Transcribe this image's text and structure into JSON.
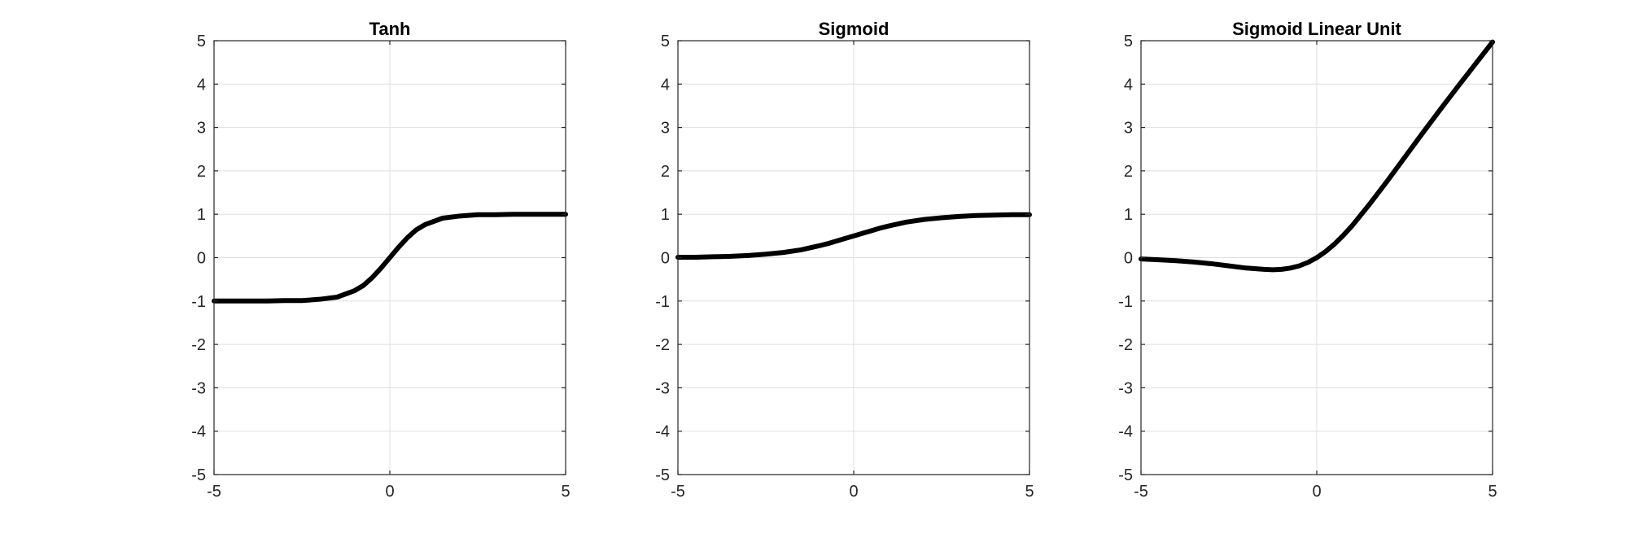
{
  "chart_data": [
    {
      "type": "line",
      "title": "Tanh",
      "xlabel": "",
      "ylabel": "",
      "xlim": [
        -5,
        5
      ],
      "ylim": [
        -5,
        5
      ],
      "xticks": [
        -5,
        0,
        5
      ],
      "yticks": [
        -5,
        -4,
        -3,
        -2,
        -1,
        0,
        1,
        2,
        3,
        4,
        5
      ],
      "xtick_labels": [
        "-5",
        "0",
        "5"
      ],
      "ytick_labels": [
        "-5",
        "-4",
        "-3",
        "-2",
        "-1",
        "0",
        "1",
        "2",
        "3",
        "4",
        "5"
      ],
      "grid": true,
      "line_color": "#000000",
      "x": [
        -5,
        -4.5,
        -4,
        -3.5,
        -3,
        -2.5,
        -2,
        -1.5,
        -1,
        -0.75,
        -0.5,
        -0.25,
        0,
        0.25,
        0.5,
        0.75,
        1,
        1.5,
        2,
        2.5,
        3,
        3.5,
        4,
        4.5,
        5
      ],
      "y": [
        -1.0,
        -1.0,
        -1.0,
        -1.0,
        -0.99,
        -0.99,
        -0.96,
        -0.91,
        -0.76,
        -0.64,
        -0.46,
        -0.24,
        0,
        0.24,
        0.46,
        0.64,
        0.76,
        0.91,
        0.96,
        0.99,
        0.99,
        1.0,
        1.0,
        1.0,
        1.0
      ]
    },
    {
      "type": "line",
      "title": "Sigmoid",
      "xlabel": "",
      "ylabel": "",
      "xlim": [
        -5,
        5
      ],
      "ylim": [
        -5,
        5
      ],
      "xticks": [
        -5,
        0,
        5
      ],
      "yticks": [
        -5,
        -4,
        -3,
        -2,
        -1,
        0,
        1,
        2,
        3,
        4,
        5
      ],
      "xtick_labels": [
        "-5",
        "0",
        "5"
      ],
      "ytick_labels": [
        "-5",
        "-4",
        "-3",
        "-2",
        "-1",
        "0",
        "1",
        "2",
        "3",
        "4",
        "5"
      ],
      "grid": true,
      "line_color": "#000000",
      "x": [
        -5,
        -4.5,
        -4,
        -3.5,
        -3,
        -2.5,
        -2,
        -1.5,
        -1,
        -0.75,
        -0.5,
        -0.25,
        0,
        0.25,
        0.5,
        0.75,
        1,
        1.5,
        2,
        2.5,
        3,
        3.5,
        4,
        4.5,
        5
      ],
      "y": [
        0.01,
        0.01,
        0.02,
        0.03,
        0.05,
        0.08,
        0.12,
        0.18,
        0.27,
        0.32,
        0.38,
        0.44,
        0.5,
        0.56,
        0.62,
        0.68,
        0.73,
        0.82,
        0.88,
        0.92,
        0.95,
        0.97,
        0.98,
        0.99,
        0.99
      ]
    },
    {
      "type": "line",
      "title": "Sigmoid Linear Unit",
      "xlabel": "",
      "ylabel": "",
      "xlim": [
        -5,
        5
      ],
      "ylim": [
        -5,
        5
      ],
      "xticks": [
        -5,
        0,
        5
      ],
      "yticks": [
        -5,
        -4,
        -3,
        -2,
        -1,
        0,
        1,
        2,
        3,
        4,
        5
      ],
      "xtick_labels": [
        "-5",
        "0",
        "5"
      ],
      "ytick_labels": [
        "-5",
        "-4",
        "-3",
        "-2",
        "-1",
        "0",
        "1",
        "2",
        "3",
        "4",
        "5"
      ],
      "grid": true,
      "line_color": "#000000",
      "x": [
        -5,
        -4.5,
        -4,
        -3.5,
        -3,
        -2.5,
        -2,
        -1.5,
        -1.25,
        -1,
        -0.75,
        -0.5,
        -0.25,
        0,
        0.25,
        0.5,
        0.75,
        1,
        1.5,
        2,
        2.5,
        3,
        3.5,
        4,
        4.5,
        5
      ],
      "y": [
        -0.03,
        -0.05,
        -0.07,
        -0.1,
        -0.14,
        -0.19,
        -0.24,
        -0.27,
        -0.28,
        -0.27,
        -0.24,
        -0.19,
        -0.11,
        0,
        0.14,
        0.31,
        0.51,
        0.73,
        1.23,
        1.76,
        2.31,
        2.86,
        3.4,
        3.93,
        4.45,
        4.97
      ]
    }
  ]
}
